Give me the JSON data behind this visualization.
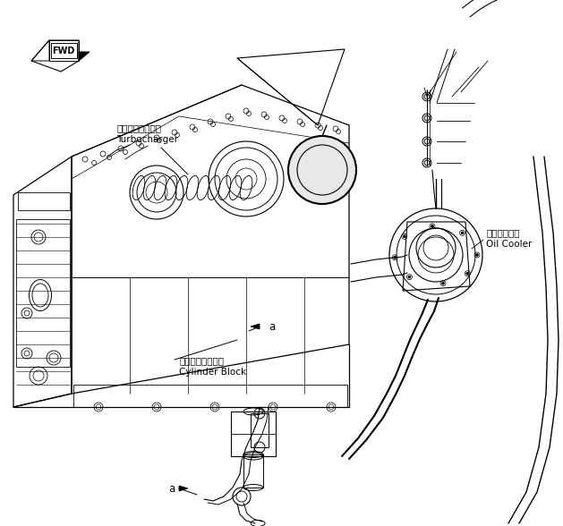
{
  "bg_color": "#ffffff",
  "line_color": "#000000",
  "labels": {
    "fwd": "FWD",
    "turbocharger_jp": "ターボチャージャ",
    "turbocharger_en": "Turbocharger",
    "cylinder_jp": "シリンダブロック",
    "cylinder_en": "Cylinder Block",
    "oilcooler_jp": "オイルクーラ",
    "oilcooler_en": "Oil Cooler",
    "marker_a": "a"
  }
}
